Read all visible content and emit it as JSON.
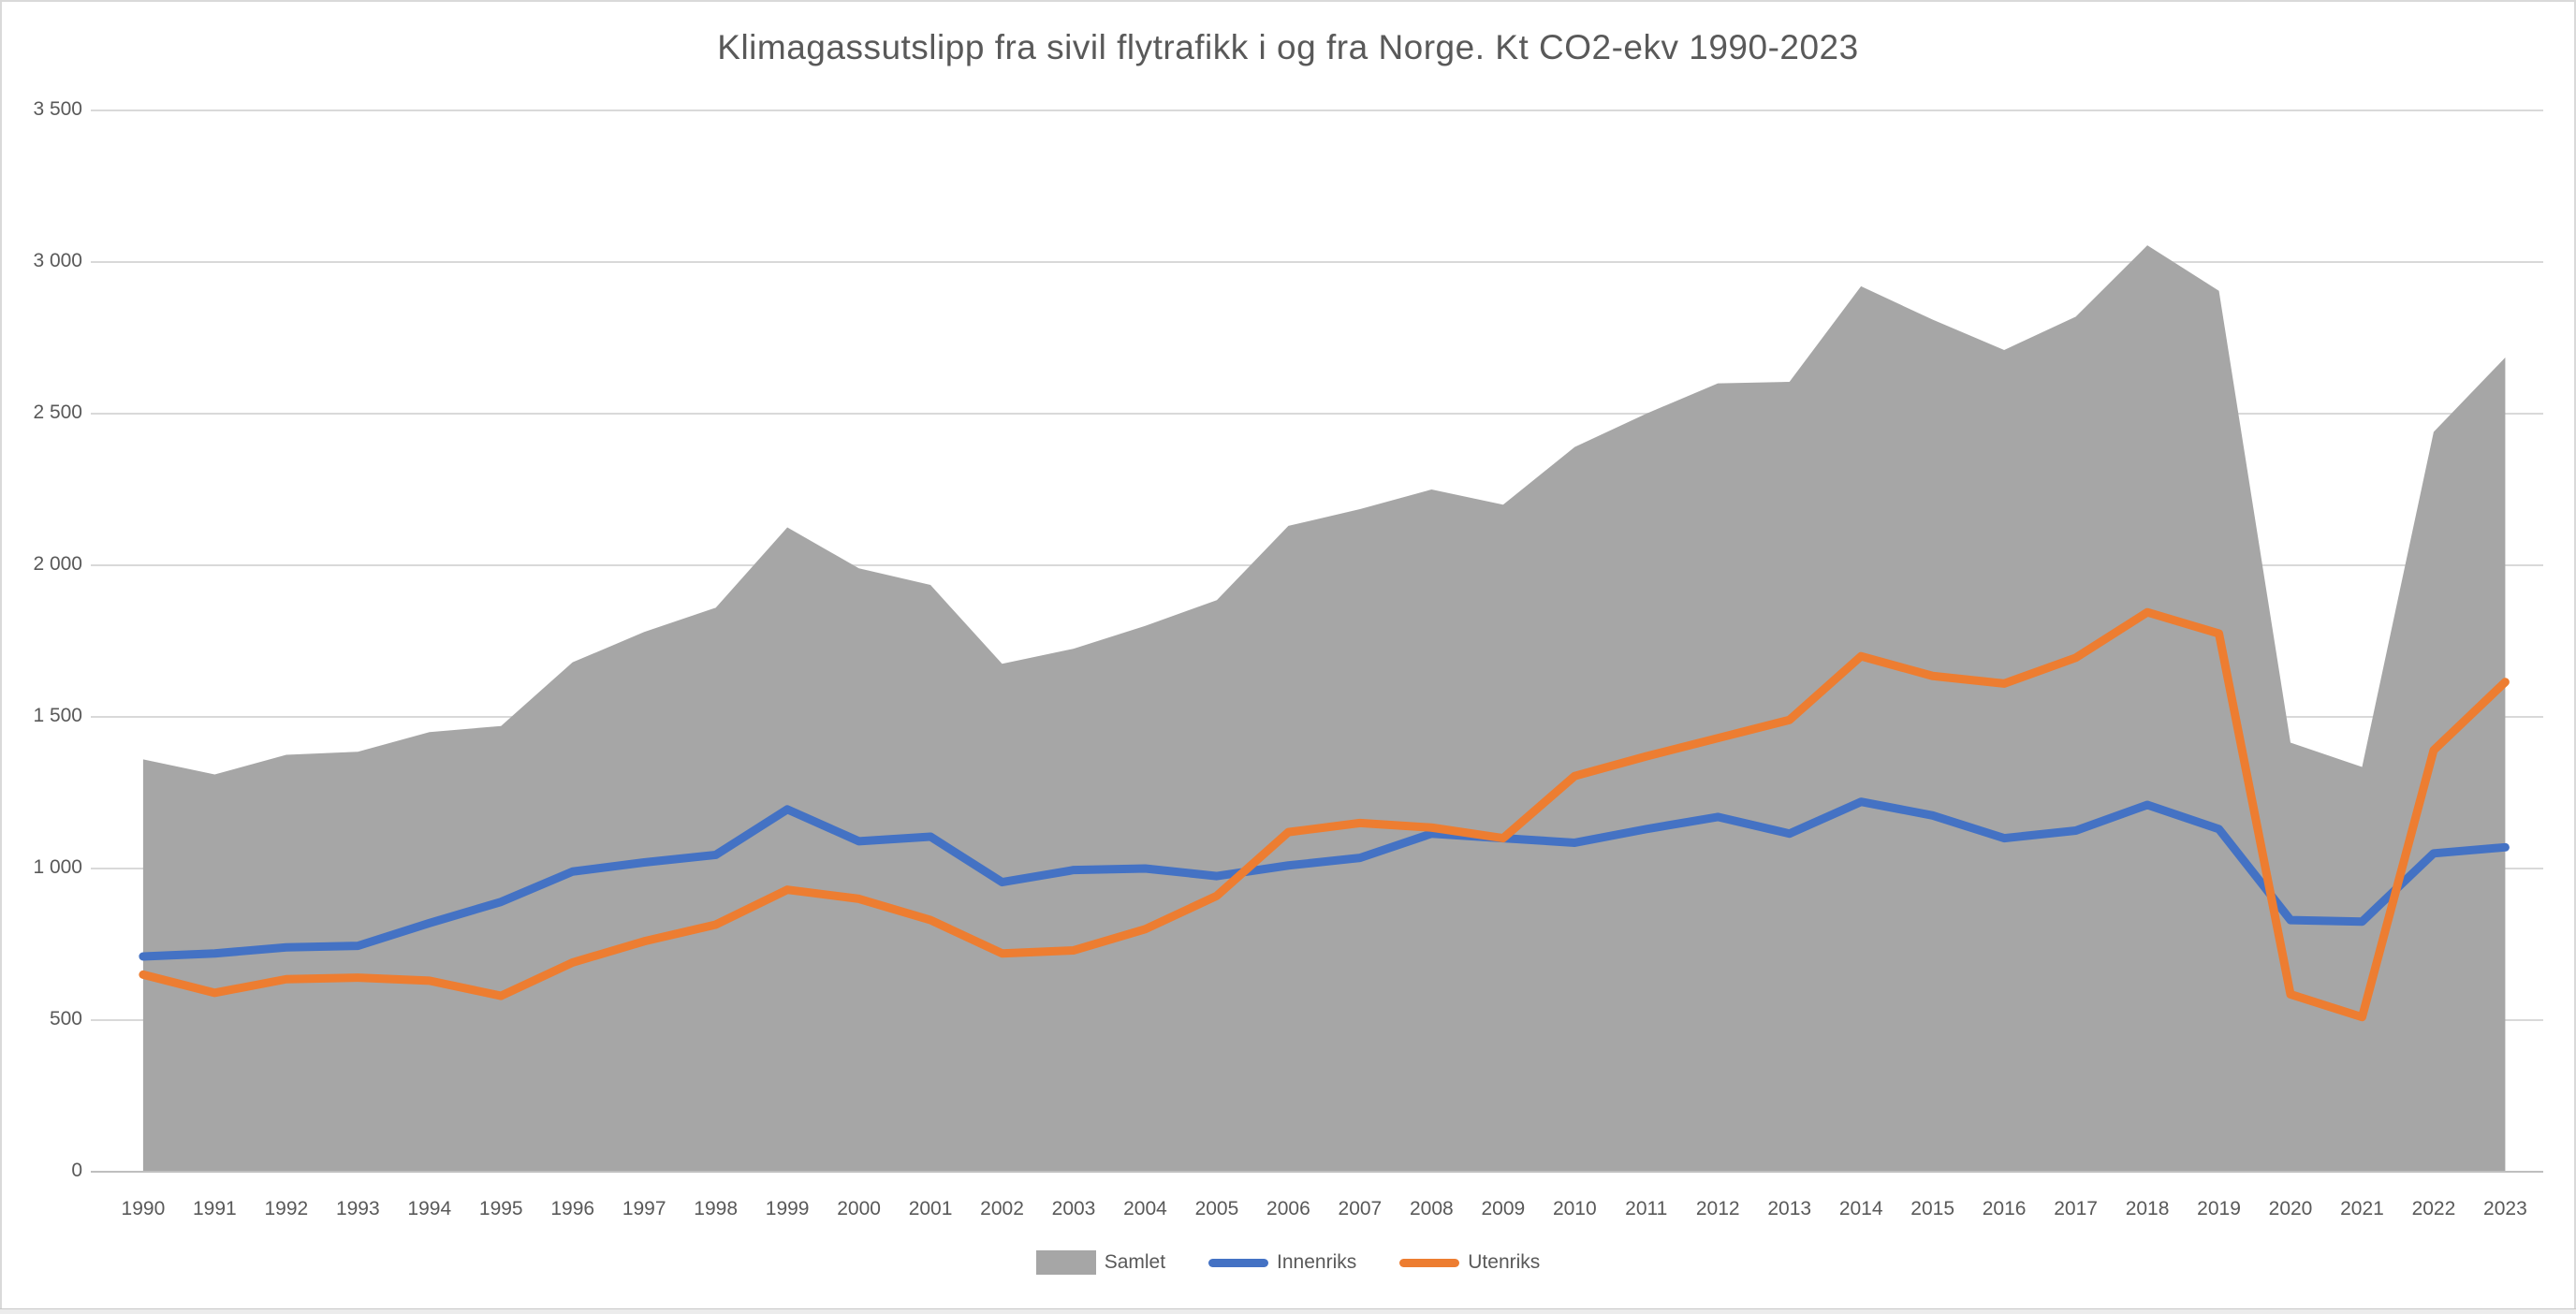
{
  "title": "Klimagassutslipp fra sivil flytrafikk i og fra Norge. Kt CO2-ekv 1990-2023",
  "chart_data": {
    "type": "area",
    "subtype": "area with line overlays",
    "categories": [
      "1990",
      "1991",
      "1992",
      "1993",
      "1994",
      "1995",
      "1996",
      "1997",
      "1998",
      "1999",
      "2000",
      "2001",
      "2002",
      "2003",
      "2004",
      "2005",
      "2006",
      "2007",
      "2008",
      "2009",
      "2010",
      "2011",
      "2012",
      "2013",
      "2014",
      "2015",
      "2016",
      "2017",
      "2018",
      "2019",
      "2020",
      "2021",
      "2022",
      "2023"
    ],
    "series": [
      {
        "name": "Samlet",
        "kind": "area",
        "color": "#A6A6A6",
        "values": [
          1360,
          1310,
          1375,
          1385,
          1450,
          1470,
          1680,
          1780,
          1860,
          2125,
          1990,
          1935,
          1675,
          1725,
          1800,
          1885,
          2130,
          2185,
          2250,
          2200,
          2390,
          2500,
          2600,
          2605,
          2920,
          2810,
          2710,
          2820,
          3055,
          2905,
          1415,
          1335,
          2440,
          2685
        ]
      },
      {
        "name": "Innenriks",
        "kind": "line",
        "color": "#4472C4",
        "values": [
          710,
          720,
          740,
          745,
          820,
          890,
          990,
          1020,
          1045,
          1195,
          1090,
          1105,
          955,
          995,
          1000,
          975,
          1010,
          1035,
          1115,
          1100,
          1085,
          1130,
          1170,
          1115,
          1220,
          1175,
          1100,
          1125,
          1210,
          1130,
          830,
          825,
          1050,
          1070
        ]
      },
      {
        "name": "Utenriks",
        "kind": "line",
        "color": "#ED7D31",
        "values": [
          650,
          590,
          635,
          640,
          630,
          580,
          690,
          760,
          815,
          930,
          900,
          830,
          720,
          730,
          800,
          910,
          1120,
          1150,
          1135,
          1100,
          1305,
          1370,
          1430,
          1490,
          1700,
          1635,
          1610,
          1695,
          1845,
          1775,
          585,
          510,
          1390,
          1615
        ]
      }
    ],
    "title": "Klimagassutslipp fra sivil flytrafikk i og fra Norge. Kt CO2-ekv 1990-2023",
    "xlabel": "",
    "ylabel": "",
    "ylim": [
      0,
      3500
    ],
    "ytick_step": 500,
    "ytick_labels": [
      "0",
      "500",
      "1 000",
      "1 500",
      "2 000",
      "2 500",
      "3 000",
      "3 500"
    ],
    "grid": true,
    "legend_position": "bottom"
  },
  "colors": {
    "text": "#595959",
    "gridline": "#D9D9D9",
    "axis_line": "#BFBFBF",
    "background": "#FFFFFF",
    "area_series": "#A6A6A6",
    "innenriks_series": "#4472C4",
    "utenriks_series": "#ED7D31"
  }
}
